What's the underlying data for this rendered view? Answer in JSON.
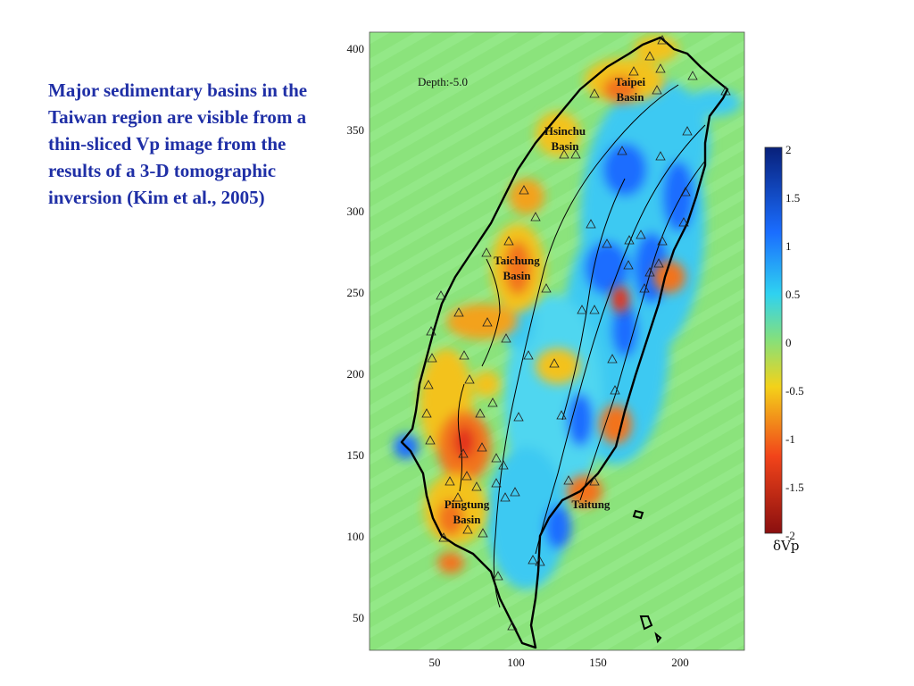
{
  "caption": "Major sedimentary basins in the Taiwan region are visible from a thin-sliced Vp image from the results of a 3-D tomographic inversion (Kim et al., 2005)",
  "map": {
    "depth_label": "Depth:-5.0",
    "x_ticks": [
      "50",
      "100",
      "150",
      "200"
    ],
    "y_ticks": [
      "400",
      "350",
      "300",
      "250",
      "200",
      "150",
      "100",
      "50"
    ],
    "basins": [
      {
        "line1": "Taipei",
        "line2": "Basin"
      },
      {
        "line1": "Hsinchu",
        "line2": "Basin"
      },
      {
        "line1": "Taichung",
        "line2": "Basin"
      },
      {
        "line1": "Pingtung",
        "line2": "Basin"
      },
      {
        "line1": "Taitung",
        "line2": ""
      }
    ]
  },
  "colorbar": {
    "ticks": [
      "2",
      "1.5",
      "1",
      "0.5",
      "0",
      "-0.5",
      "-1",
      "-1.5",
      "-2"
    ],
    "label": "δVp",
    "colors": {
      "max": "#08207a",
      "high": "#1a6dff",
      "mid_high": "#2fd2f0",
      "zero": "#86e07a",
      "mid_low": "#f3d21a",
      "low": "#f2441a",
      "min": "#8a0f0f"
    }
  }
}
